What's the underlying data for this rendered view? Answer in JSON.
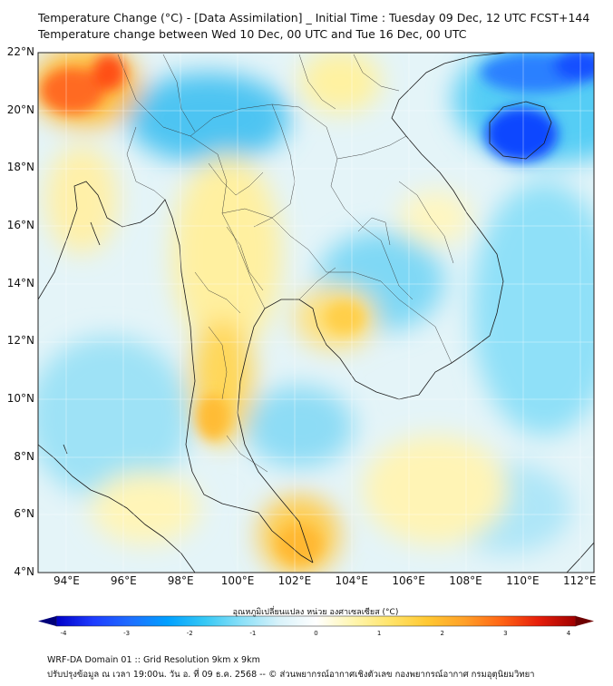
{
  "header": {
    "title_line1": "Temperature Change (°C) - [Data Assimilation] _ Initial Time : Tuesday 09 Dec, 12 UTC FCST+144",
    "title_line2": "Temperature change between Wed 10 Dec, 00 UTC and Tue 16 Dec, 00 UTC"
  },
  "map": {
    "lon_range": [
      93,
      112.5
    ],
    "lat_range": [
      4,
      22
    ],
    "lat_ticks": [
      "22°N",
      "20°N",
      "18°N",
      "16°N",
      "14°N",
      "12°N",
      "10°N",
      "8°N",
      "6°N",
      "4°N"
    ],
    "lon_ticks": [
      "94°E",
      "96°E",
      "98°E",
      "100°E",
      "102°E",
      "104°E",
      "106°E",
      "108°E",
      "110°E",
      "112°E"
    ]
  },
  "colorbar": {
    "title": "อุณหภูมิเปลี่ยนแปลง หน่วย องศาเซลเซียส (°C)",
    "range": [
      -4,
      4
    ],
    "tick_labels": [
      "-4",
      "-3",
      "-2",
      "-1",
      "0",
      "1",
      "2",
      "3",
      "4"
    ],
    "colors": [
      "#00007a",
      "#0000c8",
      "#1e3cff",
      "#1e6eff",
      "#00a0ff",
      "#35c8f5",
      "#8ae0f8",
      "#d8f2fa",
      "#ffffff",
      "#fff6b0",
      "#ffe46a",
      "#ffc832",
      "#ffa028",
      "#ff6414",
      "#e61e0a",
      "#a00000",
      "#6e0000"
    ]
  },
  "footer": {
    "line1": "WRF-DA Domain 01 :: Grid Resolution 9km x 9km",
    "line2": "ปรับปรุงข้อมูล ณ เวลา 19:00น. วัน อ. ที่ 09 ธ.ค. 2568 -- © ส่วนพยากรณ์อากาศเชิงตัวเลข กองพยากรณ์อากาศ กรมอุตุนิยมวิทยา"
  }
}
